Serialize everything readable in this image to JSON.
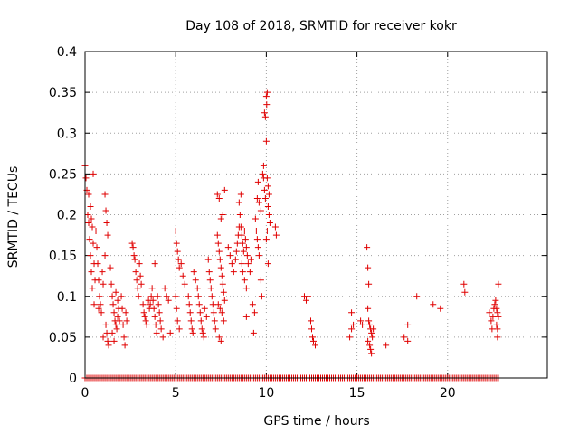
{
  "chart_data": {
    "type": "scatter",
    "title": "Day 108 of 2018, SRMTID for receiver kokr",
    "xlabel": "GPS time / hours",
    "ylabel": "SRMTID / TECUs",
    "xlim": [
      0,
      25.5
    ],
    "ylim": [
      0,
      0.4
    ],
    "xticks": [
      0,
      5,
      10,
      15,
      20
    ],
    "xtick_labels": [
      "0",
      "5",
      "10",
      "15",
      "20"
    ],
    "yticks": [
      0,
      0.05,
      0.1,
      0.15,
      0.2,
      0.25,
      0.3,
      0.35,
      0.4
    ],
    "ytick_labels": [
      "0",
      "0.05",
      "0.1",
      "0.15",
      "0.2",
      "0.25",
      "0.3",
      "0.35",
      "0.4"
    ],
    "grid": true,
    "marker": "plus",
    "color": "#e00000",
    "series": [
      {
        "name": "SRMTID",
        "points": [
          [
            0.0,
            0.26
          ],
          [
            0.05,
            0.245
          ],
          [
            0.1,
            0.23
          ],
          [
            0.15,
            0.2
          ],
          [
            0.2,
            0.19
          ],
          [
            0.25,
            0.17
          ],
          [
            0.3,
            0.15
          ],
          [
            0.35,
            0.13
          ],
          [
            0.4,
            0.11
          ],
          [
            0.45,
            0.25
          ],
          [
            0.2,
            0.225
          ],
          [
            0.3,
            0.21
          ],
          [
            0.35,
            0.195
          ],
          [
            0.4,
            0.185
          ],
          [
            0.45,
            0.165
          ],
          [
            0.5,
            0.14
          ],
          [
            0.55,
            0.12
          ],
          [
            0.5,
            0.09
          ],
          [
            0.6,
            0.18
          ],
          [
            0.65,
            0.16
          ],
          [
            0.7,
            0.14
          ],
          [
            0.75,
            0.12
          ],
          [
            0.8,
            0.1
          ],
          [
            0.85,
            0.09
          ],
          [
            0.9,
            0.08
          ],
          [
            0.95,
            0.13
          ],
          [
            1.0,
            0.115
          ],
          [
            0.75,
            0.085
          ],
          [
            1.1,
            0.225
          ],
          [
            1.15,
            0.205
          ],
          [
            1.2,
            0.19
          ],
          [
            1.25,
            0.175
          ],
          [
            1.1,
            0.15
          ],
          [
            1.15,
            0.065
          ],
          [
            1.2,
            0.055
          ],
          [
            1.25,
            0.045
          ],
          [
            1.3,
            0.04
          ],
          [
            1.0,
            0.05
          ],
          [
            1.4,
            0.135
          ],
          [
            1.45,
            0.115
          ],
          [
            1.5,
            0.1
          ],
          [
            1.55,
            0.09
          ],
          [
            1.6,
            0.08
          ],
          [
            1.65,
            0.07
          ],
          [
            1.7,
            0.065
          ],
          [
            1.75,
            0.06
          ],
          [
            1.8,
            0.075
          ],
          [
            1.85,
            0.085
          ],
          [
            1.5,
            0.055
          ],
          [
            1.6,
            0.045
          ],
          [
            1.7,
            0.105
          ],
          [
            1.8,
            0.095
          ],
          [
            1.9,
            0.07
          ],
          [
            2.0,
            0.1
          ],
          [
            2.05,
            0.085
          ],
          [
            2.1,
            0.065
          ],
          [
            2.15,
            0.05
          ],
          [
            2.2,
            0.04
          ],
          [
            2.25,
            0.08
          ],
          [
            2.3,
            0.07
          ],
          [
            2.6,
            0.165
          ],
          [
            2.65,
            0.16
          ],
          [
            2.7,
            0.15
          ],
          [
            2.75,
            0.145
          ],
          [
            2.8,
            0.13
          ],
          [
            2.85,
            0.12
          ],
          [
            2.9,
            0.11
          ],
          [
            2.95,
            0.1
          ],
          [
            3.0,
            0.14
          ],
          [
            3.05,
            0.125
          ],
          [
            3.1,
            0.115
          ],
          [
            3.2,
            0.09
          ],
          [
            3.25,
            0.08
          ],
          [
            3.3,
            0.075
          ],
          [
            3.35,
            0.07
          ],
          [
            3.4,
            0.065
          ],
          [
            3.5,
            0.095
          ],
          [
            3.55,
            0.085
          ],
          [
            3.6,
            0.09
          ],
          [
            3.65,
            0.1
          ],
          [
            3.7,
            0.11
          ],
          [
            3.75,
            0.095
          ],
          [
            3.8,
            0.085
          ],
          [
            3.85,
            0.075
          ],
          [
            3.9,
            0.065
          ],
          [
            3.95,
            0.055
          ],
          [
            3.85,
            0.14
          ],
          [
            4.0,
            0.1
          ],
          [
            4.05,
            0.09
          ],
          [
            4.1,
            0.08
          ],
          [
            4.15,
            0.07
          ],
          [
            4.2,
            0.06
          ],
          [
            4.3,
            0.05
          ],
          [
            4.4,
            0.11
          ],
          [
            4.5,
            0.1
          ],
          [
            4.6,
            0.095
          ],
          [
            4.7,
            0.055
          ],
          [
            5.0,
            0.18
          ],
          [
            5.05,
            0.165
          ],
          [
            5.1,
            0.155
          ],
          [
            5.15,
            0.145
          ],
          [
            5.2,
            0.135
          ],
          [
            5.0,
            0.1
          ],
          [
            5.05,
            0.085
          ],
          [
            5.1,
            0.07
          ],
          [
            5.2,
            0.06
          ],
          [
            5.3,
            0.14
          ],
          [
            5.4,
            0.125
          ],
          [
            5.5,
            0.115
          ],
          [
            5.7,
            0.1
          ],
          [
            5.75,
            0.09
          ],
          [
            5.8,
            0.08
          ],
          [
            5.85,
            0.07
          ],
          [
            5.9,
            0.06
          ],
          [
            5.95,
            0.055
          ],
          [
            6.0,
            0.13
          ],
          [
            6.1,
            0.12
          ],
          [
            6.2,
            0.11
          ],
          [
            6.25,
            0.1
          ],
          [
            6.3,
            0.09
          ],
          [
            6.35,
            0.08
          ],
          [
            6.4,
            0.07
          ],
          [
            6.45,
            0.06
          ],
          [
            6.5,
            0.055
          ],
          [
            6.55,
            0.05
          ],
          [
            6.6,
            0.085
          ],
          [
            6.7,
            0.075
          ],
          [
            6.8,
            0.145
          ],
          [
            6.85,
            0.13
          ],
          [
            6.9,
            0.12
          ],
          [
            6.95,
            0.11
          ],
          [
            7.0,
            0.1
          ],
          [
            7.05,
            0.09
          ],
          [
            7.1,
            0.08
          ],
          [
            7.15,
            0.07
          ],
          [
            7.2,
            0.06
          ],
          [
            7.3,
            0.175
          ],
          [
            7.35,
            0.165
          ],
          [
            7.4,
            0.155
          ],
          [
            7.45,
            0.145
          ],
          [
            7.5,
            0.135
          ],
          [
            7.55,
            0.125
          ],
          [
            7.6,
            0.115
          ],
          [
            7.65,
            0.105
          ],
          [
            7.3,
            0.225
          ],
          [
            7.4,
            0.22
          ],
          [
            7.5,
            0.195
          ],
          [
            7.6,
            0.2
          ],
          [
            7.35,
            0.09
          ],
          [
            7.45,
            0.085
          ],
          [
            7.55,
            0.08
          ],
          [
            7.65,
            0.07
          ],
          [
            7.4,
            0.05
          ],
          [
            7.5,
            0.045
          ],
          [
            7.7,
            0.095
          ],
          [
            7.7,
            0.23
          ],
          [
            7.9,
            0.16
          ],
          [
            8.0,
            0.15
          ],
          [
            8.1,
            0.14
          ],
          [
            8.2,
            0.13
          ],
          [
            8.3,
            0.145
          ],
          [
            8.35,
            0.155
          ],
          [
            8.4,
            0.165
          ],
          [
            8.45,
            0.175
          ],
          [
            8.5,
            0.185
          ],
          [
            8.55,
            0.2
          ],
          [
            8.6,
            0.185
          ],
          [
            8.65,
            0.175
          ],
          [
            8.7,
            0.165
          ],
          [
            8.75,
            0.155
          ],
          [
            8.5,
            0.215
          ],
          [
            8.6,
            0.225
          ],
          [
            8.65,
            0.14
          ],
          [
            8.7,
            0.13
          ],
          [
            8.8,
            0.12
          ],
          [
            8.9,
            0.11
          ],
          [
            8.8,
            0.18
          ],
          [
            8.85,
            0.17
          ],
          [
            8.9,
            0.16
          ],
          [
            8.95,
            0.15
          ],
          [
            8.9,
            0.075
          ],
          [
            9.0,
            0.14
          ],
          [
            9.1,
            0.13
          ],
          [
            9.15,
            0.145
          ],
          [
            9.25,
            0.09
          ],
          [
            9.3,
            0.055
          ],
          [
            9.35,
            0.08
          ],
          [
            9.4,
            0.195
          ],
          [
            9.45,
            0.18
          ],
          [
            9.5,
            0.17
          ],
          [
            9.55,
            0.16
          ],
          [
            9.6,
            0.15
          ],
          [
            9.5,
            0.22
          ],
          [
            9.55,
            0.24
          ],
          [
            9.6,
            0.215
          ],
          [
            9.7,
            0.205
          ],
          [
            9.7,
            0.12
          ],
          [
            9.75,
            0.1
          ],
          [
            9.8,
            0.25
          ],
          [
            9.85,
            0.245
          ],
          [
            9.9,
            0.23
          ],
          [
            9.95,
            0.22
          ],
          [
            9.85,
            0.26
          ],
          [
            9.9,
            0.325
          ],
          [
            9.95,
            0.32
          ],
          [
            10.0,
            0.345
          ],
          [
            10.02,
            0.335
          ],
          [
            10.05,
            0.35
          ],
          [
            10.0,
            0.29
          ],
          [
            10.05,
            0.245
          ],
          [
            10.1,
            0.235
          ],
          [
            10.15,
            0.225
          ],
          [
            10.1,
            0.21
          ],
          [
            10.15,
            0.2
          ],
          [
            10.2,
            0.19
          ],
          [
            10.05,
            0.18
          ],
          [
            10.0,
            0.17
          ],
          [
            10.1,
            0.14
          ],
          [
            10.5,
            0.185
          ],
          [
            10.55,
            0.175
          ],
          [
            12.1,
            0.1
          ],
          [
            12.2,
            0.095
          ],
          [
            12.3,
            0.1
          ],
          [
            12.45,
            0.07
          ],
          [
            12.5,
            0.06
          ],
          [
            12.55,
            0.05
          ],
          [
            12.6,
            0.045
          ],
          [
            12.7,
            0.04
          ],
          [
            14.6,
            0.05
          ],
          [
            14.7,
            0.06
          ],
          [
            14.8,
            0.065
          ],
          [
            14.7,
            0.08
          ],
          [
            15.2,
            0.07
          ],
          [
            15.3,
            0.065
          ],
          [
            15.55,
            0.16
          ],
          [
            15.6,
            0.135
          ],
          [
            15.65,
            0.115
          ],
          [
            15.6,
            0.085
          ],
          [
            15.65,
            0.07
          ],
          [
            15.7,
            0.065
          ],
          [
            15.75,
            0.06
          ],
          [
            15.8,
            0.055
          ],
          [
            15.85,
            0.05
          ],
          [
            15.6,
            0.045
          ],
          [
            15.7,
            0.04
          ],
          [
            15.75,
            0.035
          ],
          [
            15.8,
            0.03
          ],
          [
            15.9,
            0.06
          ],
          [
            16.6,
            0.04
          ],
          [
            17.6,
            0.05
          ],
          [
            17.8,
            0.045
          ],
          [
            17.8,
            0.065
          ],
          [
            18.3,
            0.1
          ],
          [
            19.2,
            0.09
          ],
          [
            19.6,
            0.085
          ],
          [
            20.9,
            0.115
          ],
          [
            20.95,
            0.105
          ],
          [
            22.3,
            0.08
          ],
          [
            22.4,
            0.07
          ],
          [
            22.45,
            0.06
          ],
          [
            22.5,
            0.075
          ],
          [
            22.55,
            0.085
          ],
          [
            22.6,
            0.09
          ],
          [
            22.65,
            0.095
          ],
          [
            22.7,
            0.085
          ],
          [
            22.75,
            0.08
          ],
          [
            22.7,
            0.065
          ],
          [
            22.75,
            0.06
          ],
          [
            22.8,
            0.115
          ],
          [
            22.8,
            0.075
          ],
          [
            22.75,
            0.05
          ]
        ],
        "zero_baseline": {
          "x_start": 0.0,
          "x_end": 22.8,
          "step": 0.1,
          "y": 0
        }
      }
    ]
  }
}
